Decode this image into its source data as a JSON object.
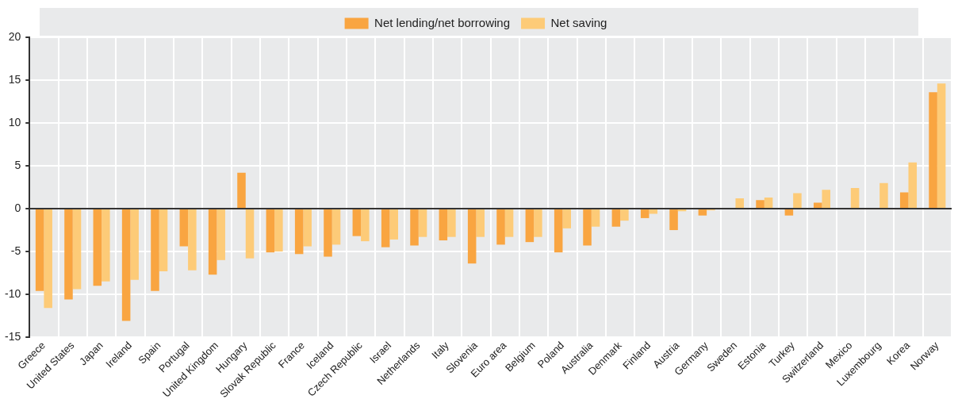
{
  "chart_data": {
    "type": "bar",
    "categories": [
      "Greece",
      "United States",
      "Japan",
      "Ireland",
      "Spain",
      "Portugal",
      "United Kingdom",
      "Hungary",
      "Slovak Republic",
      "France",
      "Iceland",
      "Czech Republic",
      "Israel",
      "Netherlands",
      "Italy",
      "Slovenia",
      "Euro area",
      "Belgium",
      "Poland",
      "Australia",
      "Denmark",
      "Finland",
      "Austria",
      "Germany",
      "Sweden",
      "Estonia",
      "Turkey",
      "Switzerland",
      "Mexico",
      "Luxembourg",
      "Korea",
      "Norway"
    ],
    "series": [
      {
        "name": "Net lending/net borrowing",
        "color": "#f9a541",
        "values": [
          -9.6,
          -10.6,
          -9.0,
          -13.1,
          -9.6,
          -4.4,
          -7.7,
          4.2,
          -5.1,
          -5.3,
          -5.6,
          -3.2,
          -4.5,
          -4.3,
          -3.7,
          -6.4,
          -4.2,
          -3.9,
          -5.1,
          -4.3,
          -2.1,
          -1.1,
          -2.5,
          -0.8,
          null,
          1.0,
          -0.8,
          0.7,
          null,
          null,
          1.9,
          13.6
        ]
      },
      {
        "name": "Net saving",
        "color": "#fdcb78",
        "values": [
          -11.6,
          -9.4,
          -8.5,
          -8.3,
          -7.3,
          -7.2,
          -6.0,
          -5.8,
          -5.0,
          -4.4,
          -4.2,
          -3.8,
          -3.6,
          -3.3,
          -3.3,
          -3.3,
          -3.3,
          -3.3,
          -2.3,
          -2.1,
          -1.4,
          -0.6,
          -0.3,
          -0.2,
          1.2,
          1.3,
          1.8,
          2.2,
          2.4,
          3.0,
          5.4,
          14.6
        ]
      }
    ],
    "ylim": [
      -15,
      20
    ],
    "yticks": [
      -15,
      -10,
      -5,
      0,
      5,
      10,
      15,
      20
    ],
    "grid": true,
    "legend": "top"
  }
}
